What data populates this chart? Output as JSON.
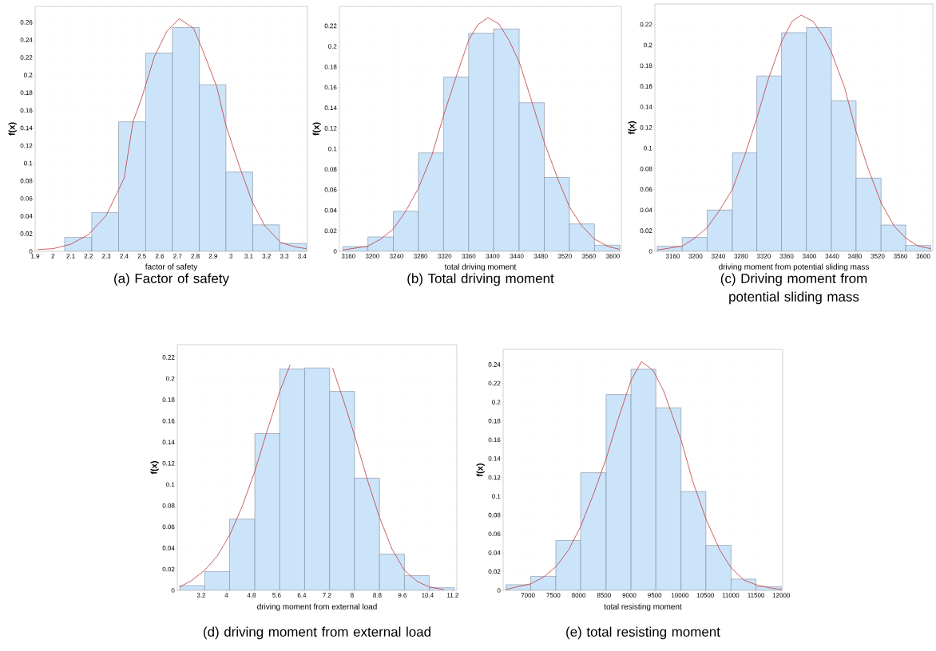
{
  "chart_data": [
    {
      "type": "histogram",
      "title": "(a) Factor of safety",
      "xlabel": "factor of safety",
      "ylabel": "f(x)",
      "grid": true,
      "xlim": [
        1.9,
        3.43
      ],
      "ylim": [
        0,
        0.278
      ],
      "xticks": [
        1.9,
        2,
        2.1,
        2.2,
        2.3,
        2.4,
        2.5,
        2.6,
        2.7,
        2.8,
        2.9,
        3,
        3.1,
        3.2,
        3.3,
        3.4
      ],
      "yticks": [
        0,
        0.02,
        0.04,
        0.06,
        0.08,
        0.1,
        0.12,
        0.14,
        0.16,
        0.18,
        0.2,
        0.22,
        0.24,
        0.26
      ],
      "series": [
        {
          "type": "histogram",
          "color": "#cce4fa",
          "bins": [
            1.914,
            2.066,
            2.218,
            2.369,
            2.521,
            2.671,
            2.822,
            2.972,
            3.123,
            3.273,
            3.424
          ],
          "values": [
            null,
            0.016,
            0.044,
            0.147,
            0.225,
            0.254,
            0.189,
            0.09,
            0.03,
            0.009
          ]
        },
        {
          "type": "line",
          "color": "#c0393b",
          "x": [
            1.914,
            2.0,
            2.1,
            2.2,
            2.3,
            2.4,
            2.45,
            2.5,
            2.57,
            2.64,
            2.71,
            2.79,
            2.84,
            2.92,
            2.97,
            3.05,
            3.12,
            3.19,
            3.28,
            3.36,
            3.424
          ],
          "values": [
            0.002,
            0.003,
            0.008,
            0.019,
            0.041,
            0.083,
            0.147,
            0.175,
            0.221,
            0.25,
            0.264,
            0.253,
            0.229,
            0.187,
            0.144,
            0.095,
            0.056,
            0.029,
            0.01,
            0.005,
            0.003
          ]
        }
      ]
    },
    {
      "type": "histogram",
      "title": "(b) Total driving moment",
      "xlabel": "total driving moment",
      "ylabel": "f(x)",
      "grid": true,
      "xlim": [
        3145,
        3614
      ],
      "ylim": [
        0,
        0.239
      ],
      "xticks": [
        3160,
        3200,
        3240,
        3280,
        3320,
        3360,
        3400,
        3440,
        3480,
        3520,
        3560,
        3600
      ],
      "yticks": [
        0,
        0.02,
        0.04,
        0.06,
        0.08,
        0.1,
        0.12,
        0.14,
        0.16,
        0.18,
        0.2,
        0.22
      ],
      "series": [
        {
          "type": "histogram",
          "color": "#cce4fa",
          "bins": [
            3150.7,
            3192.4,
            3234.7,
            3276.4,
            3318.2,
            3360,
            3401.8,
            3444,
            3485.8,
            3527.6,
            3569.3,
            3611.1
          ],
          "values": [
            0.0046,
            0.014,
            0.039,
            0.096,
            0.17,
            0.213,
            0.217,
            0.145,
            0.072,
            0.0267,
            0.006
          ]
        },
        {
          "type": "line",
          "color": "#c0393b",
          "x": [
            3150.7,
            3192,
            3214,
            3235,
            3254,
            3276,
            3299,
            3318,
            3339,
            3360,
            3375,
            3392,
            3410,
            3427,
            3444,
            3463,
            3486,
            3508,
            3528,
            3548,
            3569,
            3592,
            3611
          ],
          "values": [
            0.0013,
            0.005,
            0.012,
            0.022,
            0.038,
            0.061,
            0.094,
            0.132,
            0.17,
            0.206,
            0.221,
            0.228,
            0.222,
            0.206,
            0.185,
            0.15,
            0.106,
            0.071,
            0.043,
            0.025,
            0.012,
            0.0046,
            0.002
          ]
        }
      ]
    },
    {
      "type": "histogram",
      "title": "(c) Driving moment from potential sliding mass",
      "xlabel": "driving moment from potential sliding mass",
      "ylabel": "f(x)",
      "grid": true,
      "xlim": [
        3128.6,
        3616.8
      ],
      "ylim": [
        0,
        0.2398
      ],
      "xticks": [
        3160,
        3200,
        3240,
        3280,
        3320,
        3360,
        3400,
        3440,
        3480,
        3520,
        3560,
        3600
      ],
      "yticks": [
        0,
        0.02,
        0.04,
        0.06,
        0.08,
        0.1,
        0.12,
        0.14,
        0.16,
        0.18,
        0.2,
        0.22
      ],
      "series": [
        {
          "type": "histogram",
          "color": "#cce4fa",
          "bins": [
            3132.8,
            3176.6,
            3220.4,
            3264.7,
            3307.6,
            3351,
            3394.8,
            3438.7,
            3482.1,
            3525.9,
            3569.3,
            3613.1
          ],
          "values": [
            0.0051,
            0.0135,
            0.04,
            0.0954,
            0.17,
            0.212,
            0.217,
            0.146,
            0.071,
            0.0255,
            0.0059
          ]
        },
        {
          "type": "line",
          "color": "#c0393b",
          "x": [
            3132.8,
            3176.6,
            3198.7,
            3220.4,
            3242.5,
            3264.7,
            3286.4,
            3307.6,
            3327.9,
            3351,
            3369.4,
            3385.6,
            3406.4,
            3424.9,
            3438.7,
            3461.8,
            3482.1,
            3503.3,
            3525.9,
            3549.4,
            3569.3,
            3591,
            3613.1
          ],
          "values": [
            0.0013,
            0.005,
            0.0128,
            0.023,
            0.04,
            0.06,
            0.093,
            0.129,
            0.167,
            0.203,
            0.223,
            0.229,
            0.223,
            0.208,
            0.193,
            0.159,
            0.116,
            0.08,
            0.047,
            0.024,
            0.0128,
            0.0051,
            0.0026
          ]
        }
      ]
    },
    {
      "type": "histogram",
      "title": "(d) driving moment from external load",
      "xlabel": "driving moment from external load",
      "ylabel": "f(x)",
      "grid": true,
      "xlim": [
        2.44,
        11.33
      ],
      "ylim": [
        0,
        0.232
      ],
      "xticks": [
        3.2,
        4,
        4.8,
        5.6,
        6.4,
        7.2,
        8,
        8.8,
        9.6,
        10.4,
        11.2
      ],
      "yticks": [
        0,
        0.02,
        0.04,
        0.06,
        0.08,
        0.1,
        0.12,
        0.14,
        0.16,
        0.18,
        0.2,
        0.22
      ],
      "series": [
        {
          "type": "histogram",
          "color": "#cce4fa",
          "bins": [
            2.516,
            3.31,
            4.103,
            4.905,
            5.698,
            6.491,
            7.285,
            8.078,
            8.871,
            9.664,
            10.458,
            11.251
          ],
          "values": [
            0.0045,
            0.0178,
            0.0674,
            0.148,
            0.209,
            0.21,
            0.188,
            0.106,
            0.0342,
            0.0139,
            0.0025
          ]
        },
        {
          "type": "line",
          "color": "#c0393b",
          "x": [
            2.516,
            2.9,
            3.31,
            3.7,
            4.103,
            4.5,
            4.9,
            5.27,
            5.7,
            6.03,
            6.37,
            6.7,
            6.98,
            7.38,
            7.72,
            8.08,
            8.47,
            8.87,
            9.27,
            9.66,
            10.08,
            10.46,
            10.92
          ],
          "values": [
            0.0032,
            0.0094,
            0.019,
            0.032,
            0.052,
            0.079,
            0.112,
            0.148,
            0.188,
            0.213,
            null,
            null,
            null,
            0.21,
            0.18,
            0.146,
            0.106,
            0.069,
            0.039,
            0.019,
            0.0082,
            0.0032,
            0.0007
          ]
        }
      ]
    },
    {
      "type": "histogram",
      "title": "(e) total resisting moment",
      "xlabel": "total resisting moment",
      "ylabel": "f(x)",
      "grid": true,
      "xlim": [
        6509,
        12027
      ],
      "ylim": [
        0,
        0.256
      ],
      "xticks": [
        7000,
        7500,
        8000,
        8500,
        9000,
        9500,
        10000,
        10500,
        11000,
        11500,
        12000
      ],
      "yticks": [
        0,
        0.02,
        0.04,
        0.06,
        0.08,
        0.1,
        0.12,
        0.14,
        0.16,
        0.18,
        0.2,
        0.22,
        0.24
      ],
      "series": [
        {
          "type": "histogram",
          "color": "#cce4fa",
          "bins": [
            6562,
            7053,
            7549,
            8040,
            8542,
            9033,
            9524,
            10020,
            10511,
            11008,
            11499,
            12000
          ],
          "values": [
            0.006,
            0.015,
            0.053,
            0.125,
            0.208,
            0.235,
            0.194,
            0.105,
            0.048,
            0.012,
            0.004
          ]
        },
        {
          "type": "line",
          "color": "#c0393b",
          "x": [
            6562,
            7053,
            7301,
            7549,
            7802,
            8040,
            8304,
            8542,
            8779,
            9033,
            9239,
            9466,
            9677,
            10020,
            10258,
            10511,
            10785,
            11008,
            11261,
            11499,
            11736,
            12000
          ],
          "values": [
            0.001,
            0.007,
            0.014,
            0.025,
            0.043,
            0.068,
            0.104,
            0.14,
            0.182,
            0.223,
            0.243,
            0.234,
            0.212,
            0.16,
            0.115,
            0.076,
            0.043,
            0.024,
            0.011,
            0.006,
            0.003,
            0.001
          ]
        }
      ]
    }
  ]
}
